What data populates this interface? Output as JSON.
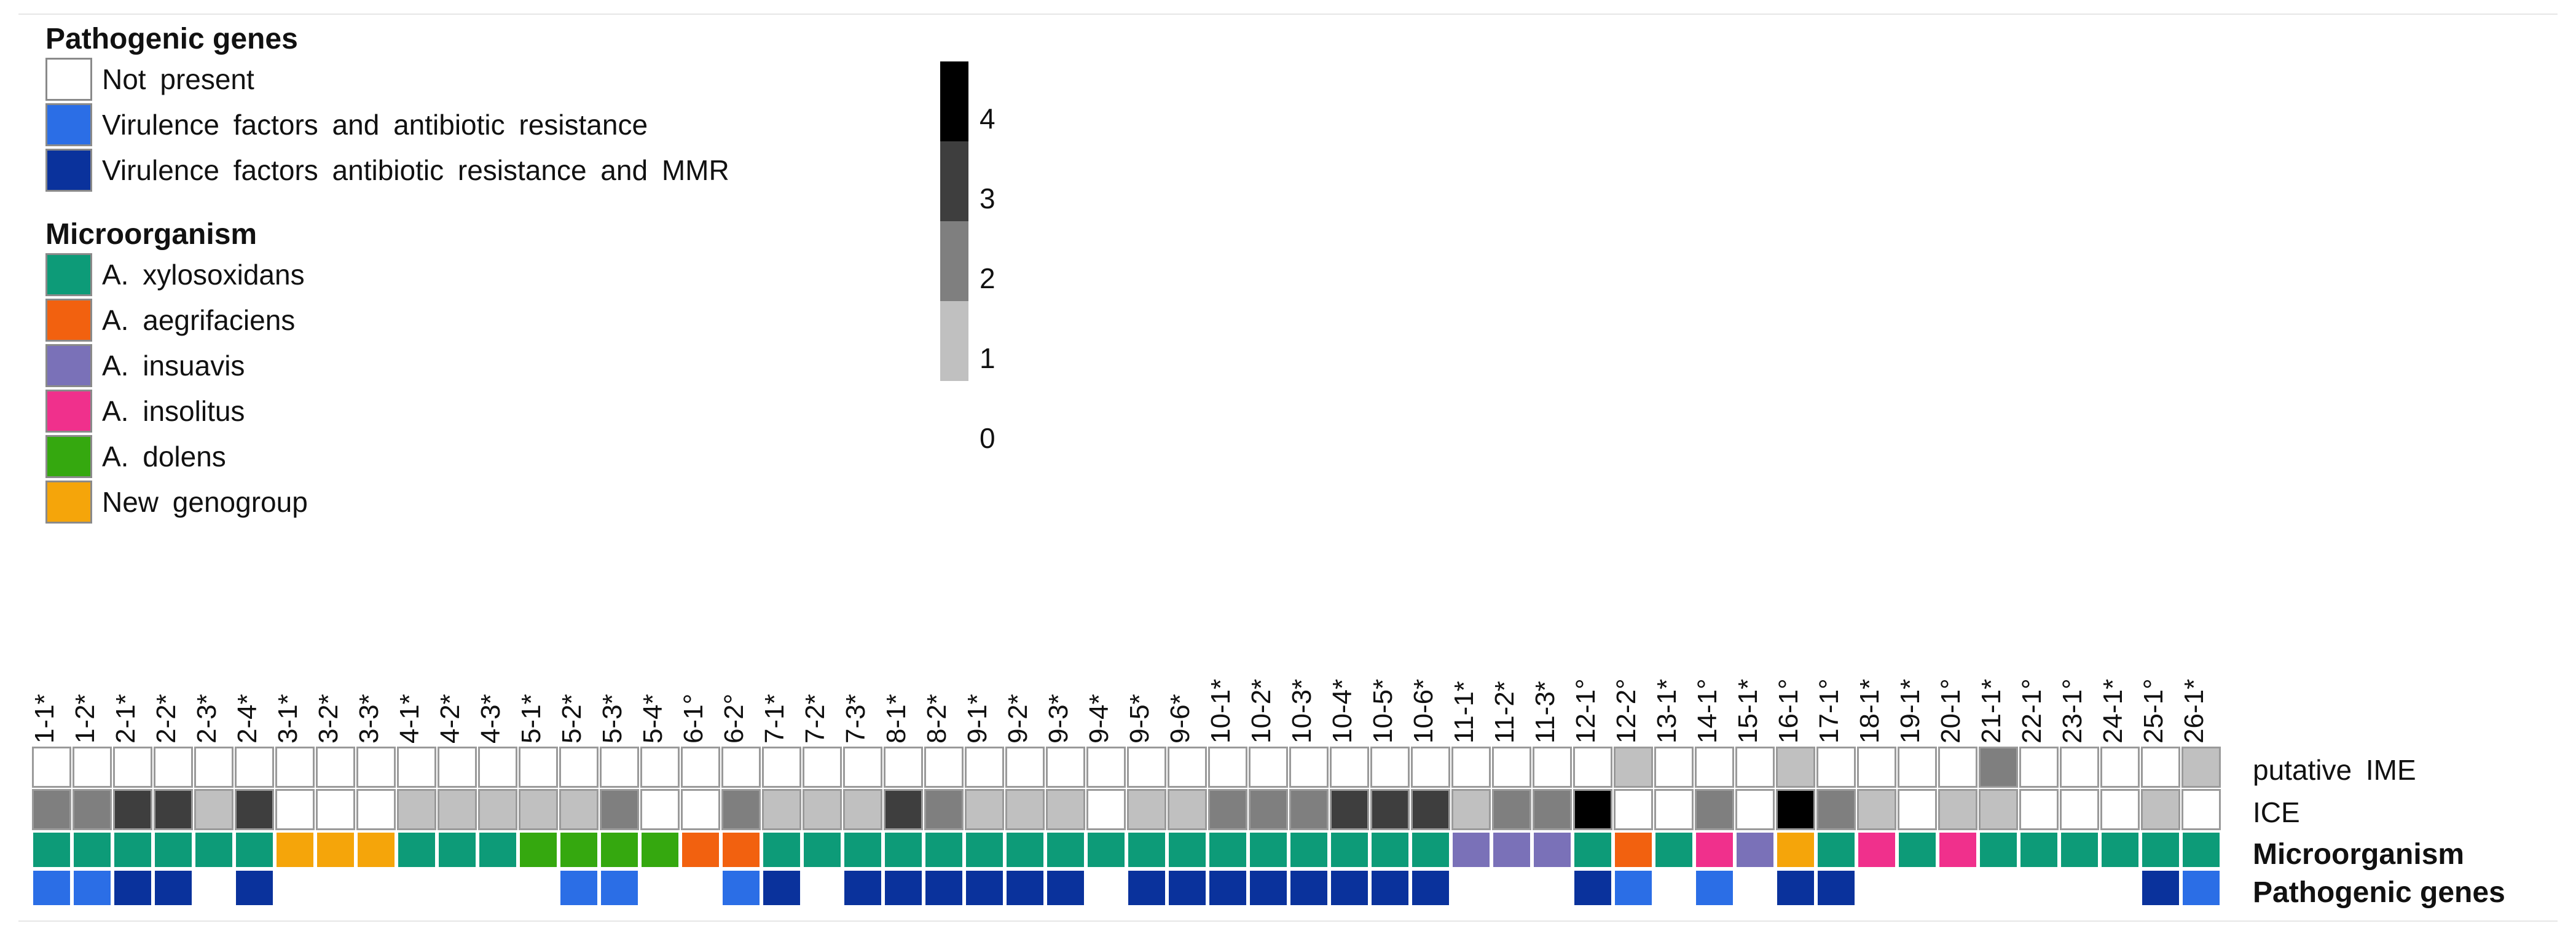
{
  "chart_data": {
    "type": "heatmap",
    "legend_pathogenic": {
      "title": "Pathogenic genes",
      "items": [
        {
          "label": "Not  present",
          "color": "#ffffff"
        },
        {
          "label": "Virulence  factors  and  antibiotic  resistance",
          "color": "#2b6ee6"
        },
        {
          "label": "Virulence  factors  antibiotic  resistance  and  MMR",
          "color": "#0a329c"
        }
      ]
    },
    "legend_microorganism": {
      "title": "Microorganism",
      "items": [
        {
          "label": "A. xylosoxidans",
          "color": "#0d9b78"
        },
        {
          "label": "A. aegrifaciens",
          "color": "#f2610f"
        },
        {
          "label": "A. insuavis",
          "color": "#7a71b8"
        },
        {
          "label": "A. insolitus",
          "color": "#f0308c"
        },
        {
          "label": "A. dolens",
          "color": "#35a80f"
        },
        {
          "label": "New genogroup",
          "color": "#f5a50a"
        }
      ]
    },
    "color_scale": {
      "labels": [
        "4",
        "3",
        "2",
        "1",
        "0"
      ],
      "colors": [
        "#000000",
        "#3e3e3e",
        "#7f7f7f",
        "#c0c0c0"
      ]
    },
    "count_colors": [
      "#ffffff",
      "#c0c0c0",
      "#7f7f7f",
      "#3e3e3e",
      "#000000"
    ],
    "columns": [
      "1-1*",
      "1-2*",
      "2-1*",
      "2-2*",
      "2-3*",
      "2-4*",
      "3-1*",
      "3-2*",
      "3-3*",
      "4-1*",
      "4-2*",
      "4-3*",
      "5-1*",
      "5-2*",
      "5-3*",
      "5-4*",
      "6-1°",
      "6-2°",
      "7-1*",
      "7-2*",
      "7-3*",
      "8-1*",
      "8-2*",
      "9-1*",
      "9-2*",
      "9-3*",
      "9-4*",
      "9-5*",
      "9-6*",
      "10-1*",
      "10-2*",
      "10-3*",
      "10-4*",
      "10-5*",
      "10-6*",
      "11-1*",
      "11-2*",
      "11-3*",
      "12-1°",
      "12-2°",
      "13-1*",
      "14-1°",
      "15-1*",
      "16-1°",
      "17-1°",
      "18-1*",
      "19-1*",
      "20-1°",
      "21-1*",
      "22-1°",
      "23-1°",
      "24-1*",
      "25-1°",
      "26-1*"
    ],
    "rows": {
      "ime": {
        "label": "putative  IME",
        "values": [
          0,
          0,
          0,
          0,
          0,
          0,
          0,
          0,
          0,
          0,
          0,
          0,
          0,
          0,
          0,
          0,
          0,
          0,
          0,
          0,
          0,
          0,
          0,
          0,
          0,
          0,
          0,
          0,
          0,
          0,
          0,
          0,
          0,
          0,
          0,
          0,
          0,
          0,
          0,
          1,
          0,
          0,
          0,
          1,
          0,
          0,
          0,
          0,
          2,
          0,
          0,
          0,
          0,
          1
        ]
      },
      "ice": {
        "label": "ICE",
        "values": [
          2,
          2,
          3,
          3,
          1,
          3,
          0,
          0,
          0,
          1,
          1,
          1,
          1,
          1,
          2,
          0,
          0,
          2,
          1,
          1,
          1,
          3,
          2,
          1,
          1,
          1,
          0,
          1,
          1,
          2,
          2,
          2,
          3,
          3,
          3,
          1,
          2,
          2,
          4,
          0,
          0,
          2,
          0,
          4,
          2,
          1,
          0,
          1,
          1,
          0,
          0,
          0,
          1,
          0
        ]
      },
      "microorganism": {
        "label": "Microorganism",
        "values": [
          "A. xylosoxidans",
          "A. xylosoxidans",
          "A. xylosoxidans",
          "A. xylosoxidans",
          "A. xylosoxidans",
          "A. xylosoxidans",
          "New genogroup",
          "New genogroup",
          "New genogroup",
          "A. xylosoxidans",
          "A. xylosoxidans",
          "A. xylosoxidans",
          "A. dolens",
          "A. dolens",
          "A. dolens",
          "A. dolens",
          "A. aegrifaciens",
          "A. aegrifaciens",
          "A. xylosoxidans",
          "A. xylosoxidans",
          "A. xylosoxidans",
          "A. xylosoxidans",
          "A. xylosoxidans",
          "A. xylosoxidans",
          "A. xylosoxidans",
          "A. xylosoxidans",
          "A. xylosoxidans",
          "A. xylosoxidans",
          "A. xylosoxidans",
          "A. xylosoxidans",
          "A. xylosoxidans",
          "A. xylosoxidans",
          "A. xylosoxidans",
          "A. xylosoxidans",
          "A. xylosoxidans",
          "A. insuavis",
          "A. insuavis",
          "A. insuavis",
          "A. xylosoxidans",
          "A. aegrifaciens",
          "A. xylosoxidans",
          "A. insolitus",
          "A. insuavis",
          "New genogroup",
          "A. xylosoxidans",
          "A. insolitus",
          "A. xylosoxidans",
          "A. insolitus",
          "A. xylosoxidans",
          "A. xylosoxidans",
          "A. xylosoxidans",
          "A. xylosoxidans",
          "A. xylosoxidans",
          "A. xylosoxidans"
        ]
      },
      "pathogenic": {
        "label": "Pathogenic genes",
        "values": [
          "Virulence  factors  and  antibiotic  resistance",
          "Virulence  factors  and  antibiotic  resistance",
          "Virulence  factors  antibiotic  resistance  and  MMR",
          "Virulence  factors  antibiotic  resistance  and  MMR",
          "Not  present",
          "Virulence  factors  antibiotic  resistance  and  MMR",
          "Not  present",
          "Not  present",
          "Not  present",
          "Not  present",
          "Not  present",
          "Not  present",
          "Not  present",
          "Virulence  factors  and  antibiotic  resistance",
          "Virulence  factors  and  antibiotic  resistance",
          "Not  present",
          "Not  present",
          "Virulence  factors  and  antibiotic  resistance",
          "Virulence  factors  antibiotic  resistance  and  MMR",
          "Not  present",
          "Virulence  factors  antibiotic  resistance  and  MMR",
          "Virulence  factors  antibiotic  resistance  and  MMR",
          "Virulence  factors  antibiotic  resistance  and  MMR",
          "Virulence  factors  antibiotic  resistance  and  MMR",
          "Virulence  factors  antibiotic  resistance  and  MMR",
          "Virulence  factors  antibiotic  resistance  and  MMR",
          "Not  present",
          "Virulence  factors  antibiotic  resistance  and  MMR",
          "Virulence  factors  antibiotic  resistance  and  MMR",
          "Virulence  factors  antibiotic  resistance  and  MMR",
          "Virulence  factors  antibiotic  resistance  and  MMR",
          "Virulence  factors  antibiotic  resistance  and  MMR",
          "Virulence  factors  antibiotic  resistance  and  MMR",
          "Virulence  factors  antibiotic  resistance  and  MMR",
          "Virulence  factors  antibiotic  resistance  and  MMR",
          "Not  present",
          "Not  present",
          "Not  present",
          "Virulence  factors  antibiotic  resistance  and  MMR",
          "Virulence  factors  and  antibiotic  resistance",
          "Not  present",
          "Virulence  factors  and  antibiotic  resistance",
          "Not  present",
          "Virulence  factors  antibiotic  resistance  and  MMR",
          "Virulence  factors  antibiotic  resistance  and  MMR",
          "Not  present",
          "Not  present",
          "Not  present",
          "Not  present",
          "Not  present",
          "Not  present",
          "Not  present",
          "Virulence  factors  antibiotic  resistance  and  MMR",
          "Virulence  factors  and  antibiotic  resistance"
        ]
      }
    }
  }
}
